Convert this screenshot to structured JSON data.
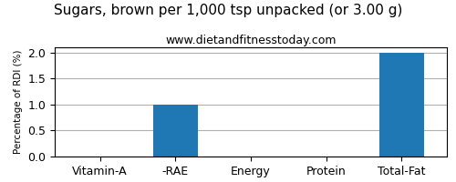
{
  "chart_data": {
    "type": "bar",
    "title": "Sugars, brown per 1,000 tsp unpacked (or 3.00 g)",
    "subtitle": "www.dietandfitnesstoday.com",
    "ylabel": "Percentage of RDI (%)",
    "categories": [
      "Vitamin-A",
      "-RAE",
      "Energy",
      "Protein",
      "Total-Fat"
    ],
    "values": [
      0.0,
      1.0,
      0.0,
      0.0,
      2.0
    ],
    "ylim": [
      0.0,
      2.1
    ],
    "yticks": [
      {
        "value": 0.0,
        "label": "0.0"
      },
      {
        "value": 0.5,
        "label": "0.5"
      },
      {
        "value": 1.0,
        "label": "1.0"
      },
      {
        "value": 1.5,
        "label": "1.5"
      },
      {
        "value": 2.0,
        "label": "2.0"
      }
    ],
    "grid": true
  }
}
